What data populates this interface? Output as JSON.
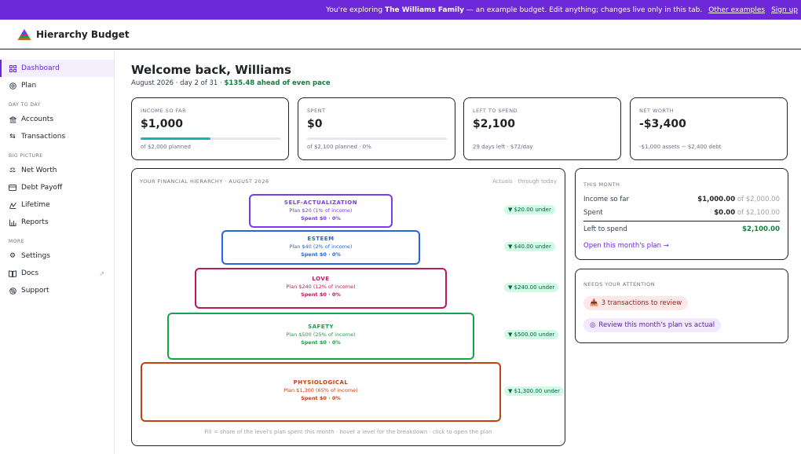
{
  "banner": {
    "prefix": "You're exploring",
    "family": "The Williams Family",
    "suffix": "— an example budget. Edit anything; changes live only in this tab.",
    "other_examples": "Other examples",
    "sign_up": "Sign up"
  },
  "app": {
    "name": "Hierarchy Budget"
  },
  "sidebar": {
    "items_top": [
      {
        "label": "Dashboard",
        "icon": "dashboard-icon"
      },
      {
        "label": "Plan",
        "icon": "target-icon"
      }
    ],
    "section_day": "DAY TO DAY",
    "items_day": [
      {
        "label": "Accounts",
        "icon": "bank-icon"
      },
      {
        "label": "Transactions",
        "icon": "arrows-icon"
      }
    ],
    "section_big": "BIG PICTURE",
    "items_big": [
      {
        "label": "Net Worth",
        "icon": "scale-icon"
      },
      {
        "label": "Debt Payoff",
        "icon": "card-icon"
      },
      {
        "label": "Lifetime",
        "icon": "chart-line-icon"
      },
      {
        "label": "Reports",
        "icon": "bar-chart-icon"
      }
    ],
    "section_more": "MORE",
    "items_more": [
      {
        "label": "Settings",
        "icon": "gear-icon"
      },
      {
        "label": "Docs",
        "icon": "book-icon"
      },
      {
        "label": "Support",
        "icon": "lifebuoy-icon"
      }
    ]
  },
  "main": {
    "welcome": "Welcome back, Williams",
    "subline_prefix": "August 2026 · day 2 of 31 ·",
    "subline_green": "$135.48 ahead of even pace"
  },
  "stats": [
    {
      "label": "INCOME SO FAR",
      "value": "$1,000",
      "foot": "of $2,000 planned",
      "progress": 0.5
    },
    {
      "label": "SPENT",
      "value": "$0",
      "foot": "of $2,100 planned · 0%",
      "progress": 0
    },
    {
      "label": "LEFT TO SPEND",
      "value": "$2,100",
      "foot": "29 days left · $72/day"
    },
    {
      "label": "NET WORTH",
      "value": "-$3,400",
      "foot": "-$1,000 assets − $2,400 debt"
    }
  ],
  "hierarchy": {
    "title": "YOUR FINANCIAL HIERARCHY · AUGUST 2026",
    "right": "Actuals · through today",
    "levels": [
      {
        "name": "SELF-ACTUALIZATION",
        "plan": "Plan $20 (1% of income)",
        "spent": "Spent $0 · 0%",
        "pill": "▼ $20.00 under",
        "color": "#7c3aed"
      },
      {
        "name": "ESTEEM",
        "plan": "Plan $40 (2% of income)",
        "spent": "Spent $0 · 0%",
        "pill": "▼ $40.00 under",
        "color": "#2563eb"
      },
      {
        "name": "LOVE",
        "plan": "Plan $240 (12% of income)",
        "spent": "Spent $0 · 0%",
        "pill": "▼ $240.00 under",
        "color": "#be185d"
      },
      {
        "name": "SAFETY",
        "plan": "Plan $500 (25% of income)",
        "spent": "Spent $0 · 0%",
        "pill": "▼ $500.00 under",
        "color": "#16a34a"
      },
      {
        "name": "PHYSIOLOGICAL",
        "plan": "Plan $1,300 (65% of income)",
        "spent": "Spent $0 · 0%",
        "pill": "▼ $1,300.00 under",
        "color": "#c2410c"
      }
    ],
    "foot": "Fill = share of the level's plan spent this month · hover a level for the breakdown · click to open the plan"
  },
  "this_month": {
    "label": "THIS MONTH",
    "income_label": "Income so far",
    "income_val": "$1,000.00",
    "income_of": "of $2,000.00",
    "spent_label": "Spent",
    "spent_val": "$0.00",
    "spent_of": "of $2,100.00",
    "left_label": "Left to spend",
    "left_val": "$2,100.00",
    "link": "Open this month's plan →"
  },
  "attention": {
    "label": "NEEDS YOUR ATTENTION",
    "chip1": "3 transactions to review",
    "chip2": "Review this month's plan vs actual"
  }
}
